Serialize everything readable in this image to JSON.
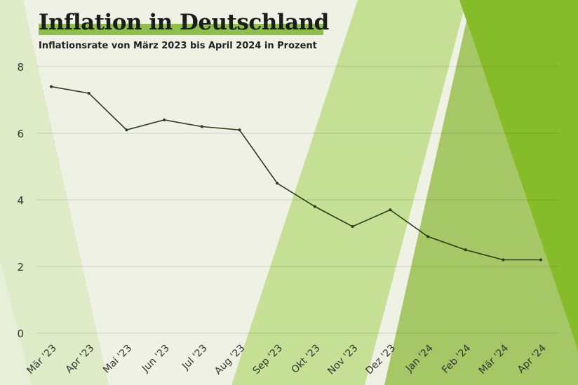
{
  "title": "Inflation in Deutschland",
  "subtitle": "Inflationsrate von März 2023 bis April 2024 in Prozent",
  "colors": {
    "background": "#eef1e4",
    "line": "#2f3a1a",
    "accent": "#8cc04a"
  },
  "chart_data": {
    "type": "line",
    "title": "Inflation in Deutschland",
    "subtitle": "Inflationsrate von März 2023 bis April 2024 in Prozent",
    "categories": [
      "Mär '23",
      "Apr '23",
      "Mai '23",
      "Jun '23",
      "Jul '23",
      "Aug '23",
      "Sep '23",
      "Okt '23",
      "Nov '23",
      "Dez '23",
      "Jan '24",
      "Feb '24",
      "Mär '24",
      "Apr '24"
    ],
    "values": [
      7.4,
      7.2,
      6.1,
      6.4,
      6.2,
      6.1,
      4.5,
      3.8,
      3.2,
      3.7,
      2.9,
      2.5,
      2.2,
      2.2
    ],
    "yticks": [
      0,
      2,
      4,
      6,
      8
    ],
    "ylim": [
      0,
      8
    ],
    "grid": true
  }
}
